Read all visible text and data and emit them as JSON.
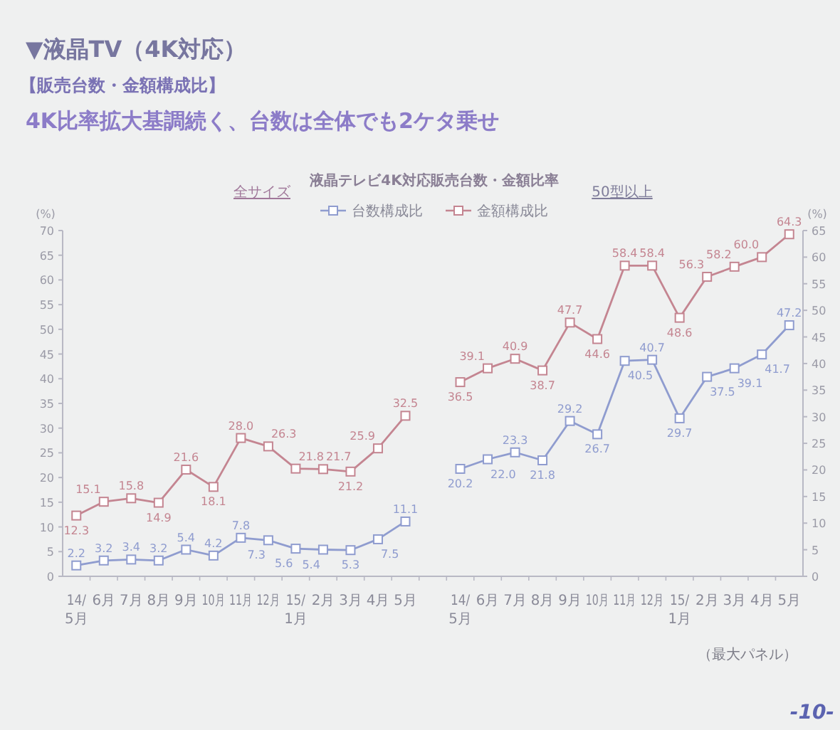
{
  "chart_data": {
    "type": "line",
    "title": "液晶テレビ4K対応販売台数・金額比率",
    "categories": [
      "14/\n5月",
      "6月",
      "7月",
      "8月",
      "9月",
      "10月",
      "11月",
      "12月",
      "15/\n1月",
      "2月",
      "3月",
      "4月",
      "5月",
      null,
      "14/\n5月",
      "6月",
      "7月",
      "8月",
      "9月",
      "10月",
      "11月",
      "12月",
      "15/\n1月",
      "2月",
      "3月",
      "4月",
      "5月"
    ],
    "series": [
      {
        "name": "台数構成比",
        "color": "#8f9ccf",
        "values": [
          2.2,
          3.2,
          3.4,
          3.2,
          5.4,
          4.2,
          7.8,
          7.3,
          5.6,
          5.4,
          5.3,
          7.5,
          11.1,
          null,
          null,
          null,
          null,
          null,
          null,
          null,
          null,
          null,
          null,
          null,
          null,
          null,
          null
        ],
        "value_labels": [
          "2.2",
          "3.2",
          "3.4",
          "3.2",
          "5.4",
          "4.2",
          "7.8",
          "7.3",
          "5.6",
          "5.4",
          "5.3",
          "7.5",
          "11.1",
          null,
          null,
          null,
          null,
          null,
          null,
          null,
          null,
          null,
          null,
          null,
          null,
          null,
          null
        ]
      },
      {
        "name": "金額構成比",
        "color": "#c48591",
        "values": [
          12.3,
          15.1,
          15.8,
          14.9,
          21.6,
          18.1,
          28.0,
          26.3,
          21.8,
          21.7,
          21.2,
          25.9,
          32.5,
          null,
          null,
          null,
          null,
          null,
          null,
          null,
          null,
          null,
          null,
          null,
          null,
          null,
          null
        ],
        "value_labels": [
          "12.3",
          "15.1",
          "15.8",
          "14.9",
          "21.6",
          "18.1",
          "28.0",
          "26.3",
          "21.8",
          "21.7",
          "21.2",
          "25.9",
          "32.5",
          null,
          null,
          null,
          null,
          null,
          null,
          null,
          null,
          null,
          null,
          null,
          null,
          null,
          null
        ]
      },
      {
        "color": "#8f9ccf",
        "axis": "y2",
        "values": [
          null,
          null,
          null,
          null,
          null,
          null,
          null,
          null,
          null,
          null,
          null,
          null,
          null,
          null,
          20.2,
          22.0,
          23.3,
          21.8,
          29.2,
          26.7,
          40.5,
          40.7,
          29.7,
          37.5,
          39.1,
          41.7,
          47.2
        ],
        "value_labels": [
          null,
          null,
          null,
          null,
          null,
          null,
          null,
          null,
          null,
          null,
          null,
          null,
          null,
          null,
          "20.2",
          "22.0",
          "23.3",
          "21.8",
          "29.2",
          "26.7",
          "40.5",
          "40.7",
          "29.7",
          "37.5",
          "39.1",
          "41.7",
          "47.2"
        ]
      },
      {
        "color": "#c48591",
        "axis": "y2",
        "values": [
          null,
          null,
          null,
          null,
          null,
          null,
          null,
          null,
          null,
          null,
          null,
          null,
          null,
          null,
          36.5,
          39.1,
          40.9,
          38.7,
          47.7,
          44.6,
          58.4,
          58.4,
          48.6,
          56.3,
          58.2,
          60.0,
          64.3
        ],
        "value_labels": [
          null,
          null,
          null,
          null,
          null,
          null,
          null,
          null,
          null,
          null,
          null,
          null,
          null,
          null,
          "36.5",
          "39.1",
          "40.9",
          "38.7",
          "47.7",
          "44.6",
          "58.4",
          "58.4",
          "48.6",
          "56.3",
          "58.2",
          "60.0",
          "64.3"
        ]
      }
    ],
    "ylabel": "(%)",
    "y2label": "(%)",
    "ylim": [
      0,
      70
    ],
    "yticks": [
      0,
      5,
      10,
      15,
      20,
      25,
      30,
      35,
      40,
      45,
      50,
      55,
      60,
      65,
      70
    ],
    "y2lim": [
      0,
      65
    ],
    "y2ticks": [
      0,
      5,
      10,
      15,
      20,
      25,
      30,
      35,
      40,
      45,
      50,
      55,
      60,
      65
    ],
    "marker": "square",
    "line_style": "solid",
    "legend": "top",
    "annotations": [
      "▼液晶TV（4K対応）",
      "【販売台数・金額構成比】",
      "4K比率拡大基調続く、台数は全体でも2ケタ乗せ",
      "全サイズ",
      "50型以上",
      "（最大パネル）",
      "-10-"
    ]
  }
}
